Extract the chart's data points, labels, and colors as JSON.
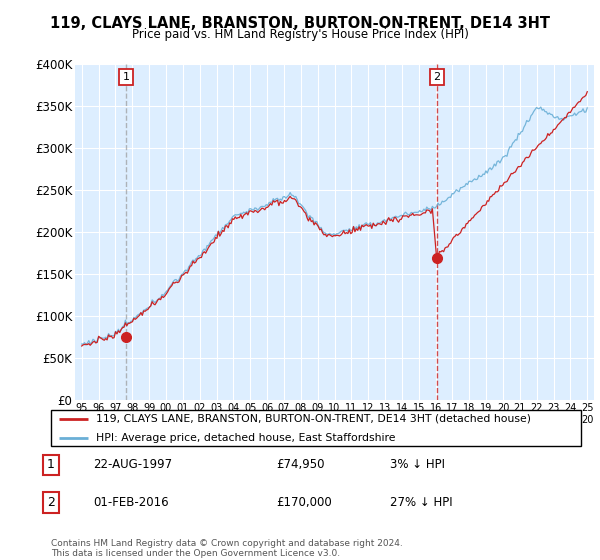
{
  "title": "119, CLAYS LANE, BRANSTON, BURTON-ON-TRENT, DE14 3HT",
  "subtitle": "Price paid vs. HM Land Registry's House Price Index (HPI)",
  "hpi_color": "#6aafd6",
  "price_color": "#cc2222",
  "vline1_color": "#999999",
  "vline2_color": "#cc2222",
  "bg_color": "#ddeeff",
  "ylim": [
    0,
    400000
  ],
  "yticks": [
    0,
    50000,
    100000,
    150000,
    200000,
    250000,
    300000,
    350000,
    400000
  ],
  "ytick_labels": [
    "£0",
    "£50K",
    "£100K",
    "£150K",
    "£200K",
    "£250K",
    "£300K",
    "£350K",
    "£400K"
  ],
  "legend_line1": "119, CLAYS LANE, BRANSTON, BURTON-ON-TRENT, DE14 3HT (detached house)",
  "legend_line2": "HPI: Average price, detached house, East Staffordshire",
  "annotation1_label": "1",
  "annotation1_date": "22-AUG-1997",
  "annotation1_price": "£74,950",
  "annotation1_hpi": "3% ↓ HPI",
  "annotation2_label": "2",
  "annotation2_date": "01-FEB-2016",
  "annotation2_price": "£170,000",
  "annotation2_hpi": "27% ↓ HPI",
  "footnote": "Contains HM Land Registry data © Crown copyright and database right 2024.\nThis data is licensed under the Open Government Licence v3.0.",
  "sale1_year": 1997.64,
  "sale1_price": 74950,
  "sale2_year": 2016.08,
  "sale2_price": 170000
}
